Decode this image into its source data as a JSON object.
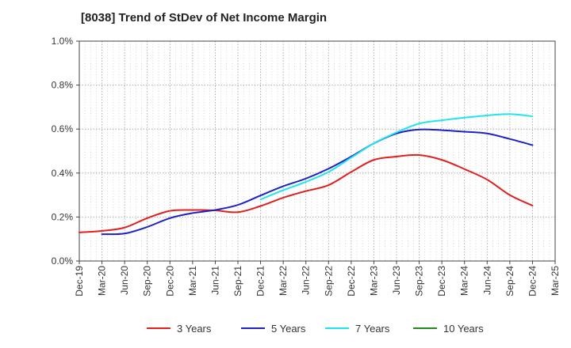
{
  "chart_data": {
    "type": "line",
    "title": "[8038]  Trend of StDev of Net Income Margin",
    "xlabel": "",
    "ylabel": "",
    "x_ticks": [
      "Dec-19",
      "Mar-20",
      "Jun-20",
      "Sep-20",
      "Dec-20",
      "Mar-21",
      "Jun-21",
      "Sep-21",
      "Dec-21",
      "Mar-22",
      "Jun-22",
      "Sep-22",
      "Dec-22",
      "Mar-23",
      "Jun-23",
      "Sep-23",
      "Dec-23",
      "Mar-24",
      "Jun-24",
      "Sep-24",
      "Dec-24",
      "Mar-25"
    ],
    "y_ticks": [
      "0.0%",
      "0.2%",
      "0.4%",
      "0.6%",
      "0.8%",
      "1.0%"
    ],
    "ylim": [
      0,
      1.0
    ],
    "grid": true,
    "legend_position": "bottom",
    "series": [
      {
        "name": "3 Years",
        "color": "#e0201f",
        "start_index": 0,
        "values": [
          0.13,
          0.137,
          0.152,
          0.195,
          0.228,
          0.232,
          0.23,
          0.222,
          0.25,
          0.288,
          0.318,
          0.345,
          0.405,
          0.46,
          0.475,
          0.482,
          0.46,
          0.418,
          0.37,
          0.3,
          0.252
        ]
      },
      {
        "name": "5 Years",
        "color": "#1f20c8",
        "start_index": 1,
        "values": [
          0.122,
          0.125,
          0.155,
          0.195,
          0.218,
          0.232,
          0.255,
          0.298,
          0.34,
          0.375,
          0.42,
          0.475,
          0.535,
          0.58,
          0.598,
          0.595,
          0.588,
          0.58,
          0.555,
          0.527
        ]
      },
      {
        "name": "7 Years",
        "color": "#21e5ee",
        "start_index": 8,
        "values": [
          0.28,
          0.322,
          0.36,
          0.405,
          0.47,
          0.535,
          0.585,
          0.625,
          0.64,
          0.652,
          0.662,
          0.668,
          0.658
        ]
      },
      {
        "name": "10 Years",
        "color": "#1f8a1f",
        "start_index": 0,
        "values": []
      }
    ]
  }
}
